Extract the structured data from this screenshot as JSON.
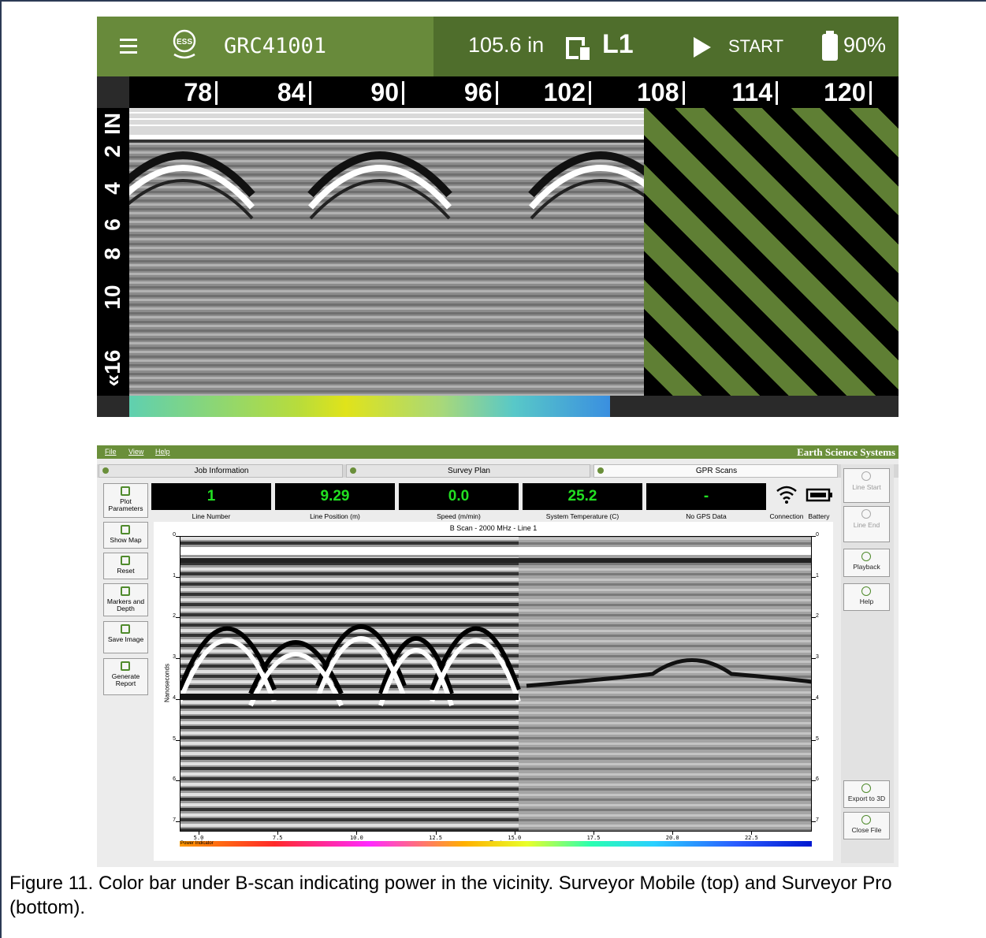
{
  "mobile": {
    "header": {
      "device_id": "GRC41001",
      "distance": "105.6 in",
      "line": "L1",
      "action": "START",
      "battery": "90%"
    },
    "ruler": [
      "78",
      "84",
      "90",
      "96",
      "102",
      "108",
      "114",
      "120"
    ],
    "depth_scale": [
      "IN",
      "2",
      "4",
      "6",
      "8",
      "10",
      "«16"
    ]
  },
  "pro": {
    "menu": [
      "File",
      "View",
      "Help"
    ],
    "brand": "Earth Science Systems",
    "tabs": [
      "Job Information",
      "Survey Plan",
      "GPR Scans"
    ],
    "tools": [
      "Plot Parameters",
      "Show Map",
      "Reset",
      "Markers and Depth",
      "Save Image",
      "Generate Report"
    ],
    "readouts": [
      {
        "value": "1",
        "label": "Line Number"
      },
      {
        "value": "9.29",
        "label": "Line Position (m)"
      },
      {
        "value": "0.0",
        "label": "Speed (m/min)"
      },
      {
        "value": "25.2",
        "label": "System Temperature (C)"
      },
      {
        "value": "-",
        "label": "No GPS Data"
      }
    ],
    "status": [
      "Connection",
      "Battery"
    ],
    "controls": [
      "Line Start",
      "Line End",
      "Playback",
      "Help",
      "Export to 3D",
      "Close File"
    ],
    "plot": {
      "title": "B Scan - 2000 MHz -  Line 1",
      "y_label": "Nanoseconds",
      "x_label": "Feet",
      "yticks": [
        "0",
        "1",
        "2",
        "3",
        "4",
        "5",
        "6",
        "7"
      ],
      "xticks": [
        "5.0",
        "7.5",
        "10.0",
        "12.5",
        "15.0",
        "17.5",
        "20.0",
        "22.5"
      ],
      "power_label": "Power Indicator"
    }
  },
  "caption": "Figure 11.  Color bar under B-scan indicating power in the vicinity.  Surveyor Mobile (top) and Surveyor Pro (bottom)."
}
